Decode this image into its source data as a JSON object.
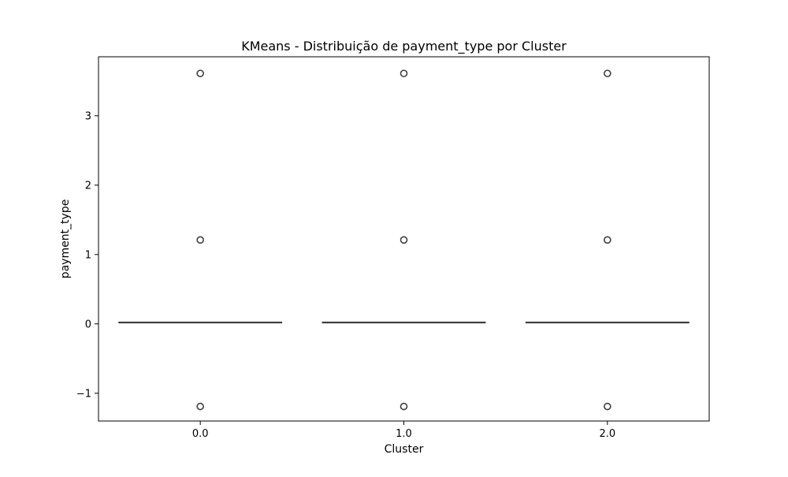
{
  "chart_data": {
    "type": "box",
    "title": "KMeans - Distribuição de payment_type por Cluster",
    "xlabel": "Cluster",
    "ylabel": "payment_type",
    "categories": [
      "0.0",
      "1.0",
      "2.0"
    ],
    "ylim": [
      -1.4,
      3.85
    ],
    "yticks": [
      -1,
      0,
      1,
      2,
      3
    ],
    "ytick_labels": [
      "−1",
      "0",
      "1",
      "2",
      "3"
    ],
    "grid": false,
    "boxes": [
      {
        "category": "0.0",
        "whisker_low": 0.02,
        "q1": 0.02,
        "median": 0.02,
        "q3": 0.02,
        "whisker_high": 0.02,
        "outliers": [
          -1.19,
          1.21,
          3.61
        ]
      },
      {
        "category": "1.0",
        "whisker_low": 0.02,
        "q1": 0.02,
        "median": 0.02,
        "q3": 0.02,
        "whisker_high": 0.02,
        "outliers": [
          -1.19,
          1.21,
          3.61
        ]
      },
      {
        "category": "2.0",
        "whisker_low": 0.02,
        "q1": 0.02,
        "median": 0.02,
        "q3": 0.02,
        "whisker_high": 0.02,
        "outliers": [
          -1.19,
          1.21,
          3.61
        ]
      }
    ],
    "colors": {
      "box_line": "#3f3f3f",
      "outlier_edge": "#3f3f3f",
      "axis": "#000000"
    }
  }
}
